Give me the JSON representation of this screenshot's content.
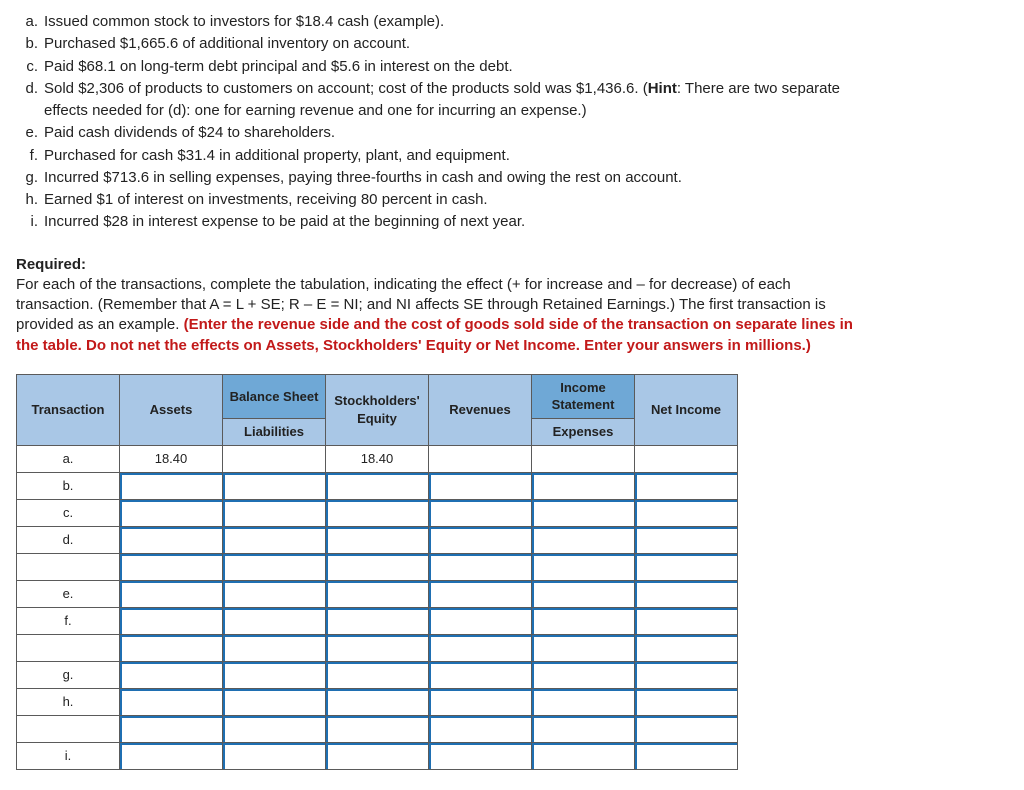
{
  "transactions": {
    "a": "Issued common stock to investors for $18.4 cash (example).",
    "b": "Purchased $1,665.6 of additional inventory on account.",
    "c": "Paid $68.1 on long-term debt principal and $5.6 in interest on the debt.",
    "d_prefix": "Sold $2,306 of products to customers on account; cost of the products sold was $1,436.6. (",
    "d_hint": "Hint",
    "d_suffix": ": There are two separate",
    "d_cont": "effects needed for (d): one for earning revenue and one for incurring an expense.)",
    "e": "Paid cash dividends of $24 to shareholders.",
    "f": "Purchased for cash $31.4 in additional property, plant, and equipment.",
    "g": "Incurred $713.6 in selling expenses, paying three-fourths in cash and owing the rest on account.",
    "h": "Earned $1 of interest on investments, receiving 80 percent in cash.",
    "i": "Incurred $28 in interest expense to be paid at the beginning of next year."
  },
  "required": {
    "heading": "Required:",
    "body1": "For each of the transactions, complete the tabulation, indicating the effect (+ for increase and – for decrease) of each",
    "body2": "transaction. (Remember that A = L + SE; R – E = NI; and NI affects SE through Retained Earnings.) The first transaction is",
    "body3": "provided as an example. ",
    "red1": "(Enter the revenue side and the cost of goods sold side of the transaction on separate lines in",
    "red2": "the table. Do not net the effects on Assets, Stockholders' Equity or Net Income. Enter your answers in millions.)"
  },
  "table": {
    "section_headers": {
      "bs": "Balance Sheet",
      "is": "Income Statement"
    },
    "col_headers": {
      "txn": "Transaction",
      "assets": "Assets",
      "liab": "Liabilities",
      "se": "Stockholders' Equity",
      "rev": "Revenues",
      "exp": "Expenses",
      "ni": "Net Income"
    },
    "rows": [
      {
        "label": "a.",
        "assets": "18.40",
        "se": "18.40"
      },
      {
        "label": "b."
      },
      {
        "label": "c."
      },
      {
        "label": "d."
      },
      {
        "label": ""
      },
      {
        "label": "e."
      },
      {
        "label": "f."
      },
      {
        "label": ""
      },
      {
        "label": "g."
      },
      {
        "label": "h."
      },
      {
        "label": ""
      },
      {
        "label": "i."
      }
    ],
    "colors": {
      "section_header_bg": "#6fa8d6",
      "col_header_bg": "#a9c7e6",
      "border": "#5a5a5a",
      "input_accent": "#1f6fb2"
    }
  }
}
